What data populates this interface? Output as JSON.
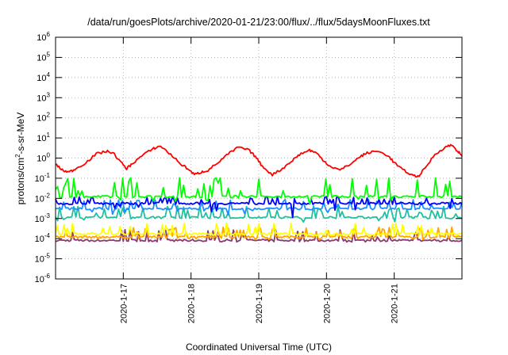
{
  "chart_data": {
    "type": "line",
    "title": "/data/run/goesPlots/archive/2020-01-21/23:00/flux/../flux/5daysMoonFluxes.txt",
    "xlabel": "Coordinated Universal Time (UTC)",
    "ylabel": {
      "pre": "protons/cm",
      "sup": "2",
      "post": "-s-sr-MeV"
    },
    "x_range_days": [
      16.0,
      22.0
    ],
    "x_ticks": [
      {
        "day": 17,
        "label": "2020-1-17"
      },
      {
        "day": 18,
        "label": "2020-1-18"
      },
      {
        "day": 19,
        "label": "2020-1-19"
      },
      {
        "day": 20,
        "label": "2020-1-20"
      },
      {
        "day": 21,
        "label": "2020-1-21"
      }
    ],
    "y_scale": "log",
    "y_range": [
      1e-06,
      1000000.0
    ],
    "y_ticks": [
      {
        "base": "10",
        "exp": "-6",
        "value": 1e-06
      },
      {
        "base": "10",
        "exp": "-5",
        "value": 1e-05
      },
      {
        "base": "10",
        "exp": "-4",
        "value": 0.0001
      },
      {
        "base": "10",
        "exp": "-3",
        "value": 0.001
      },
      {
        "base": "10",
        "exp": "-2",
        "value": 0.01
      },
      {
        "base": "10",
        "exp": "-1",
        "value": 0.1
      },
      {
        "base": "10",
        "exp": "0",
        "value": 1
      },
      {
        "base": "10",
        "exp": "1",
        "value": 10
      },
      {
        "base": "10",
        "exp": "2",
        "value": 100
      },
      {
        "base": "10",
        "exp": "3",
        "value": 1000
      },
      {
        "base": "10",
        "exp": "4",
        "value": 10000
      },
      {
        "base": "10",
        "exp": "5",
        "value": 100000
      },
      {
        "base": "10",
        "exp": "6",
        "value": 1000000
      }
    ],
    "grid": true,
    "series": [
      {
        "color": "#ff0000",
        "x": [
          16.0,
          16.1,
          16.2,
          16.3,
          16.45,
          16.6,
          16.75,
          16.85,
          16.95,
          17.05,
          17.15,
          17.3,
          17.45,
          17.55,
          17.7,
          17.85,
          17.95,
          18.05,
          18.15,
          18.25,
          18.4,
          18.55,
          18.7,
          18.85,
          18.95,
          19.05,
          19.2,
          19.35,
          19.5,
          19.6,
          19.75,
          19.85,
          19.95,
          20.05,
          20.2,
          20.35,
          20.5,
          20.6,
          20.75,
          20.9,
          21.0,
          21.1,
          21.25,
          21.35,
          21.45,
          21.6,
          21.75,
          21.85,
          21.95,
          22.0
        ],
        "y": [
          0.5,
          0.25,
          0.2,
          0.3,
          0.6,
          1.6,
          2.2,
          1.8,
          0.7,
          0.3,
          0.6,
          1.5,
          3.0,
          4.0,
          1.5,
          0.5,
          0.3,
          0.15,
          0.2,
          0.25,
          0.6,
          1.6,
          3.5,
          2.5,
          1.2,
          0.4,
          0.15,
          0.3,
          0.8,
          1.5,
          2.5,
          1.8,
          0.8,
          0.4,
          0.25,
          0.5,
          1.2,
          1.8,
          2.2,
          1.4,
          0.6,
          0.3,
          0.15,
          0.12,
          0.3,
          1.5,
          3.5,
          4.5,
          2.0,
          1.2
        ]
      },
      {
        "color": "#00ff00",
        "baseline": 0.012,
        "x_step": 0.03,
        "spike_low": 0.4,
        "spike_high": 9
      },
      {
        "color": "#0000ff",
        "baseline": 0.0055,
        "x_step": 0.025,
        "spike_low": 0.12,
        "spike_high": 2.2
      },
      {
        "color": "#1e90ff",
        "baseline": 0.003,
        "x_step": 0.03,
        "spike_low": 0.45,
        "spike_high": 3
      },
      {
        "color": "#20c0a0",
        "baseline": 0.0011,
        "x_step": 0.03,
        "spike_low": 0.6,
        "spike_high": 4
      },
      {
        "color": "#ffff00",
        "baseline": 0.00017,
        "x_step": 0.025,
        "spike_low": 0.8,
        "spike_high": 3.5
      },
      {
        "color": "#ffa500",
        "baseline": 0.00012,
        "x_step": 0.025,
        "spike_low": 0.75,
        "spike_high": 3.2
      },
      {
        "color": "#8b3a6b",
        "baseline": 8e-05,
        "x_step": 0.025,
        "spike_low": 0.85,
        "spike_high": 3.5
      }
    ]
  }
}
